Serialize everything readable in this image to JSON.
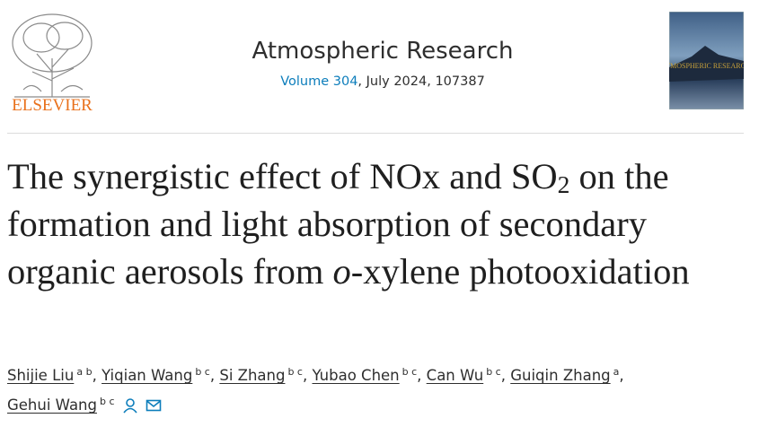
{
  "header": {
    "publisher": "ELSEVIER",
    "journal": "Atmospheric Research",
    "volume": "Volume 304",
    "issue_info": ", July 2024, 107387",
    "cover_title": "ATMOSPHERIC RESEARCH"
  },
  "title": {
    "parts": [
      "The synergistic effect of NOx and SO",
      "2",
      " on the formation and light absorption of secondary organic aerosols from ",
      "o",
      "-xylene photooxidation"
    ]
  },
  "authors": [
    {
      "name": "Shijie Liu",
      "affiliations": "a b"
    },
    {
      "name": "Yiqian Wang",
      "affiliations": "b c"
    },
    {
      "name": "Si Zhang",
      "affiliations": "b c"
    },
    {
      "name": "Yubao Chen",
      "affiliations": "b c"
    },
    {
      "name": "Can Wu",
      "affiliations": "b c"
    },
    {
      "name": "Guiqin Zhang",
      "affiliations": "a"
    },
    {
      "name": "Gehui Wang",
      "affiliations": "b c"
    }
  ],
  "author_separator": ","
}
